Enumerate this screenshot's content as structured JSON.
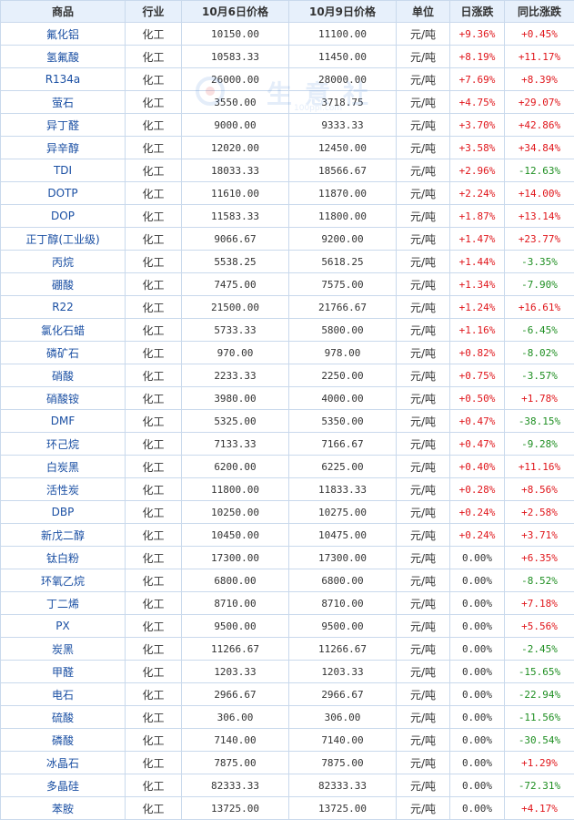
{
  "watermark": {
    "text": "生意社",
    "url": "100ppi.com"
  },
  "table": {
    "headers": [
      "商品",
      "行业",
      "10月6日价格",
      "10月9日价格",
      "单位",
      "日涨跌",
      "同比涨跌"
    ],
    "rows": [
      [
        "氟化铝",
        "化工",
        "10150.00",
        "11100.00",
        "元/吨",
        "+9.36%",
        "+0.45%"
      ],
      [
        "氢氟酸",
        "化工",
        "10583.33",
        "11450.00",
        "元/吨",
        "+8.19%",
        "+11.17%"
      ],
      [
        "R134a",
        "化工",
        "26000.00",
        "28000.00",
        "元/吨",
        "+7.69%",
        "+8.39%"
      ],
      [
        "萤石",
        "化工",
        "3550.00",
        "3718.75",
        "元/吨",
        "+4.75%",
        "+29.07%"
      ],
      [
        "异丁醛",
        "化工",
        "9000.00",
        "9333.33",
        "元/吨",
        "+3.70%",
        "+42.86%"
      ],
      [
        "异辛醇",
        "化工",
        "12020.00",
        "12450.00",
        "元/吨",
        "+3.58%",
        "+34.84%"
      ],
      [
        "TDI",
        "化工",
        "18033.33",
        "18566.67",
        "元/吨",
        "+2.96%",
        "-12.63%"
      ],
      [
        "DOTP",
        "化工",
        "11610.00",
        "11870.00",
        "元/吨",
        "+2.24%",
        "+14.00%"
      ],
      [
        "DOP",
        "化工",
        "11583.33",
        "11800.00",
        "元/吨",
        "+1.87%",
        "+13.14%"
      ],
      [
        "正丁醇(工业级)",
        "化工",
        "9066.67",
        "9200.00",
        "元/吨",
        "+1.47%",
        "+23.77%"
      ],
      [
        "丙烷",
        "化工",
        "5538.25",
        "5618.25",
        "元/吨",
        "+1.44%",
        "-3.35%"
      ],
      [
        "硼酸",
        "化工",
        "7475.00",
        "7575.00",
        "元/吨",
        "+1.34%",
        "-7.90%"
      ],
      [
        "R22",
        "化工",
        "21500.00",
        "21766.67",
        "元/吨",
        "+1.24%",
        "+16.61%"
      ],
      [
        "氯化石蜡",
        "化工",
        "5733.33",
        "5800.00",
        "元/吨",
        "+1.16%",
        "-6.45%"
      ],
      [
        "磷矿石",
        "化工",
        "970.00",
        "978.00",
        "元/吨",
        "+0.82%",
        "-8.02%"
      ],
      [
        "硝酸",
        "化工",
        "2233.33",
        "2250.00",
        "元/吨",
        "+0.75%",
        "-3.57%"
      ],
      [
        "硝酸铵",
        "化工",
        "3980.00",
        "4000.00",
        "元/吨",
        "+0.50%",
        "+1.78%"
      ],
      [
        "DMF",
        "化工",
        "5325.00",
        "5350.00",
        "元/吨",
        "+0.47%",
        "-38.15%"
      ],
      [
        "环己烷",
        "化工",
        "7133.33",
        "7166.67",
        "元/吨",
        "+0.47%",
        "-9.28%"
      ],
      [
        "白炭黑",
        "化工",
        "6200.00",
        "6225.00",
        "元/吨",
        "+0.40%",
        "+11.16%"
      ],
      [
        "活性炭",
        "化工",
        "11800.00",
        "11833.33",
        "元/吨",
        "+0.28%",
        "+8.56%"
      ],
      [
        "DBP",
        "化工",
        "10250.00",
        "10275.00",
        "元/吨",
        "+0.24%",
        "+2.58%"
      ],
      [
        "新戊二醇",
        "化工",
        "10450.00",
        "10475.00",
        "元/吨",
        "+0.24%",
        "+3.71%"
      ],
      [
        "钛白粉",
        "化工",
        "17300.00",
        "17300.00",
        "元/吨",
        "0.00%",
        "+6.35%"
      ],
      [
        "环氧乙烷",
        "化工",
        "6800.00",
        "6800.00",
        "元/吨",
        "0.00%",
        "-8.52%"
      ],
      [
        "丁二烯",
        "化工",
        "8710.00",
        "8710.00",
        "元/吨",
        "0.00%",
        "+7.18%"
      ],
      [
        "PX",
        "化工",
        "9500.00",
        "9500.00",
        "元/吨",
        "0.00%",
        "+5.56%"
      ],
      [
        "炭黑",
        "化工",
        "11266.67",
        "11266.67",
        "元/吨",
        "0.00%",
        "-2.45%"
      ],
      [
        "甲醛",
        "化工",
        "1203.33",
        "1203.33",
        "元/吨",
        "0.00%",
        "-15.65%"
      ],
      [
        "电石",
        "化工",
        "2966.67",
        "2966.67",
        "元/吨",
        "0.00%",
        "-22.94%"
      ],
      [
        "硫酸",
        "化工",
        "306.00",
        "306.00",
        "元/吨",
        "0.00%",
        "-11.56%"
      ],
      [
        "磷酸",
        "化工",
        "7140.00",
        "7140.00",
        "元/吨",
        "0.00%",
        "-30.54%"
      ],
      [
        "冰晶石",
        "化工",
        "7875.00",
        "7875.00",
        "元/吨",
        "0.00%",
        "+1.29%"
      ],
      [
        "多晶硅",
        "化工",
        "82333.33",
        "82333.33",
        "元/吨",
        "0.00%",
        "-72.31%"
      ],
      [
        "苯胺",
        "化工",
        "13725.00",
        "13725.00",
        "元/吨",
        "0.00%",
        "+4.17%"
      ]
    ]
  },
  "colors": {
    "up": "#e0161b",
    "down": "#1f8f22",
    "link": "#1a4fa3",
    "header_bg": "#e7f0fb",
    "border": "#c9d9ec"
  }
}
